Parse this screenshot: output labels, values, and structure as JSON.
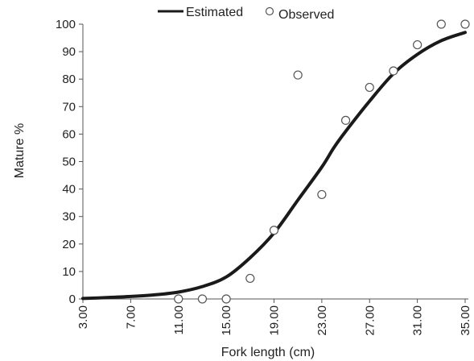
{
  "chart_data": {
    "type": "scatter",
    "xlabel": "Fork length (cm)",
    "ylabel": "Mature %",
    "xlim": [
      3,
      35
    ],
    "ylim": [
      0,
      100
    ],
    "x_ticks": [
      "3.00",
      "7.00",
      "11.00",
      "15.00",
      "19.00",
      "23.00",
      "27.00",
      "31.00",
      "35.00"
    ],
    "x_tick_values": [
      3,
      7,
      11,
      15,
      19,
      23,
      27,
      31,
      35
    ],
    "y_ticks": [
      "0",
      "10",
      "20",
      "30",
      "40",
      "50",
      "60",
      "70",
      "80",
      "90",
      "100"
    ],
    "y_tick_values": [
      0,
      10,
      20,
      30,
      40,
      50,
      60,
      70,
      80,
      90,
      100
    ],
    "grid": false,
    "legend": {
      "position": "top-center"
    },
    "series": [
      {
        "name": "Estimated",
        "kind": "line",
        "color": "#1a1a1a",
        "x": [
          3,
          5,
          7,
          9,
          11,
          13,
          15,
          17,
          19,
          21,
          23,
          24,
          25,
          27,
          29,
          31,
          33,
          35
        ],
        "y": [
          0.2,
          0.5,
          0.9,
          1.5,
          2.5,
          4.5,
          8,
          15,
          24,
          36,
          48,
          55,
          61,
          72,
          82,
          89,
          94,
          97
        ]
      },
      {
        "name": "Observed",
        "kind": "scatter",
        "color": "#555555",
        "x": [
          11,
          13,
          15,
          17,
          19,
          21,
          23,
          25,
          27,
          29,
          31,
          33,
          35
        ],
        "y": [
          0,
          0,
          0,
          7.5,
          25,
          81.5,
          38,
          65,
          77,
          83,
          92.5,
          100,
          100
        ]
      }
    ]
  }
}
